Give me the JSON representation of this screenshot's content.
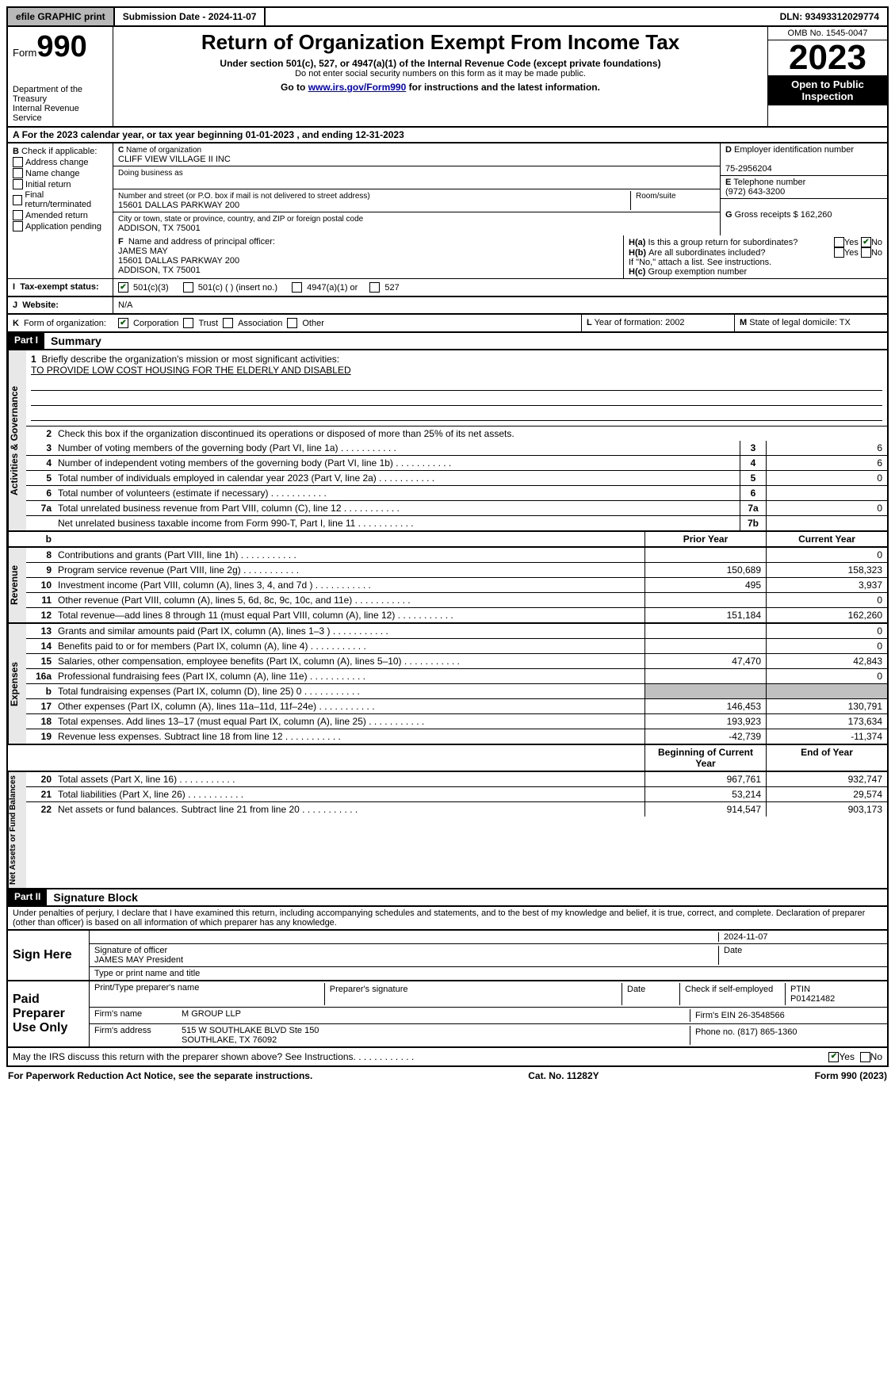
{
  "topbar": {
    "efile": "efile GRAPHIC print",
    "submission_label": "Submission Date - 2024-11-07",
    "dln": "DLN: 93493312029774"
  },
  "header": {
    "form_prefix": "Form",
    "form_num": "990",
    "dept": "Department of the Treasury\nInternal Revenue Service",
    "title": "Return of Organization Exempt From Income Tax",
    "sub1": "Under section 501(c), 527, or 4947(a)(1) of the Internal Revenue Code (except private foundations)",
    "sub2": "Do not enter social security numbers on this form as it may be made public.",
    "sub3_pre": "Go to ",
    "sub3_link": "www.irs.gov/Form990",
    "sub3_post": " for instructions and the latest information.",
    "omb": "OMB No. 1545-0047",
    "year": "2023",
    "open": "Open to Public Inspection"
  },
  "line_a": "For the 2023 calendar year, or tax year beginning 01-01-2023   , and ending 12-31-2023",
  "box_b": {
    "label": "Check if applicable:",
    "items": [
      "Address change",
      "Name change",
      "Initial return",
      "Final return/terminated",
      "Amended return",
      "Application pending"
    ],
    "prefix": "B"
  },
  "box_c": {
    "name_lbl": "Name of organization",
    "name": "CLIFF VIEW VILLAGE II INC",
    "dba_lbl": "Doing business as",
    "dba": "",
    "addr_lbl": "Number and street (or P.O. box if mail is not delivered to street address)",
    "addr": "15601 DALLAS PARKWAY 200",
    "room_lbl": "Room/suite",
    "city_lbl": "City or town, state or province, country, and ZIP or foreign postal code",
    "city": "ADDISON, TX  75001",
    "prefix": "C"
  },
  "box_d": {
    "lbl": "Employer identification number",
    "val": "75-2956204",
    "prefix": "D"
  },
  "box_e": {
    "lbl": "Telephone number",
    "val": "(972) 643-3200",
    "prefix": "E"
  },
  "box_g": {
    "lbl": "Gross receipts $",
    "val": "162,260",
    "prefix": "G"
  },
  "box_f": {
    "lbl": "Name and address of principal officer:",
    "val": "JAMES MAY\n15601 DALLAS PARKWAY 200\nADDISON, TX  75001",
    "prefix": "F"
  },
  "box_h": {
    "a": "Is this a group return for subordinates?",
    "b": "Are all subordinates included?",
    "note": "If \"No,\" attach a list. See instructions.",
    "c": "Group exemption number",
    "yes": "Yes",
    "no": "No",
    "ha": "H(a)",
    "hb": "H(b)",
    "hc": "H(c)"
  },
  "box_i": {
    "lbl": "Tax-exempt status:",
    "o1": "501(c)(3)",
    "o2": "501(c) (  ) (insert no.)",
    "o3": "4947(a)(1) or",
    "o4": "527",
    "prefix": "I"
  },
  "box_j": {
    "lbl": "Website:",
    "val": "N/A",
    "prefix": "J"
  },
  "box_k": {
    "lbl": "Form of organization:",
    "o1": "Corporation",
    "o2": "Trust",
    "o3": "Association",
    "o4": "Other",
    "prefix": "K"
  },
  "box_l": {
    "lbl": "Year of formation:",
    "val": "2002",
    "prefix": "L"
  },
  "box_m": {
    "lbl": "State of legal domicile:",
    "val": "TX",
    "prefix": "M"
  },
  "part1": {
    "hdr": "Part I",
    "title": "Summary",
    "q1": "Briefly describe the organization's mission or most significant activities:",
    "mission": "TO PROVIDE LOW COST HOUSING FOR THE ELDERLY AND DISABLED",
    "q2": "Check this box      if the organization discontinued its operations or disposed of more than 25% of its net assets.",
    "tabs": {
      "gov": "Activities & Governance",
      "rev": "Revenue",
      "exp": "Expenses",
      "net": "Net Assets or Fund Balances"
    },
    "lines": [
      {
        "n": "3",
        "d": "Number of voting members of the governing body (Part VI, line 1a)",
        "box": "3",
        "v2": "6"
      },
      {
        "n": "4",
        "d": "Number of independent voting members of the governing body (Part VI, line 1b)",
        "box": "4",
        "v2": "6"
      },
      {
        "n": "5",
        "d": "Total number of individuals employed in calendar year 2023 (Part V, line 2a)",
        "box": "5",
        "v2": "0"
      },
      {
        "n": "6",
        "d": "Total number of volunteers (estimate if necessary)",
        "box": "6",
        "v2": ""
      },
      {
        "n": "7a",
        "d": "Total unrelated business revenue from Part VIII, column (C), line 12",
        "box": "7a",
        "v2": "0"
      },
      {
        "n": "",
        "d": "Net unrelated business taxable income from Form 990-T, Part I, line 11",
        "box": "7b",
        "v2": ""
      }
    ],
    "cols": {
      "prior": "Prior Year",
      "curr": "Current Year",
      "begin": "Beginning of Current Year",
      "end": "End of Year"
    },
    "rev": [
      {
        "n": "8",
        "d": "Contributions and grants (Part VIII, line 1h)",
        "v1": "",
        "v2": "0"
      },
      {
        "n": "9",
        "d": "Program service revenue (Part VIII, line 2g)",
        "v1": "150,689",
        "v2": "158,323"
      },
      {
        "n": "10",
        "d": "Investment income (Part VIII, column (A), lines 3, 4, and 7d )",
        "v1": "495",
        "v2": "3,937"
      },
      {
        "n": "11",
        "d": "Other revenue (Part VIII, column (A), lines 5, 6d, 8c, 9c, 10c, and 11e)",
        "v1": "",
        "v2": "0"
      },
      {
        "n": "12",
        "d": "Total revenue—add lines 8 through 11 (must equal Part VIII, column (A), line 12)",
        "v1": "151,184",
        "v2": "162,260"
      }
    ],
    "exp": [
      {
        "n": "13",
        "d": "Grants and similar amounts paid (Part IX, column (A), lines 1–3 )",
        "v1": "",
        "v2": "0"
      },
      {
        "n": "14",
        "d": "Benefits paid to or for members (Part IX, column (A), line 4)",
        "v1": "",
        "v2": "0"
      },
      {
        "n": "15",
        "d": "Salaries, other compensation, employee benefits (Part IX, column (A), lines 5–10)",
        "v1": "47,470",
        "v2": "42,843"
      },
      {
        "n": "16a",
        "d": "Professional fundraising fees (Part IX, column (A), line 11e)",
        "v1": "",
        "v2": "0"
      },
      {
        "n": "b",
        "d": "Total fundraising expenses (Part IX, column (D), line 25) 0",
        "v1": "grey",
        "v2": "grey"
      },
      {
        "n": "17",
        "d": "Other expenses (Part IX, column (A), lines 11a–11d, 11f–24e)",
        "v1": "146,453",
        "v2": "130,791"
      },
      {
        "n": "18",
        "d": "Total expenses. Add lines 13–17 (must equal Part IX, column (A), line 25)",
        "v1": "193,923",
        "v2": "173,634"
      },
      {
        "n": "19",
        "d": "Revenue less expenses. Subtract line 18 from line 12",
        "v1": "-42,739",
        "v2": "-11,374"
      }
    ],
    "net": [
      {
        "n": "20",
        "d": "Total assets (Part X, line 16)",
        "v1": "967,761",
        "v2": "932,747"
      },
      {
        "n": "21",
        "d": "Total liabilities (Part X, line 26)",
        "v1": "53,214",
        "v2": "29,574"
      },
      {
        "n": "22",
        "d": "Net assets or fund balances. Subtract line 21 from line 20",
        "v1": "914,547",
        "v2": "903,173"
      }
    ]
  },
  "part2": {
    "hdr": "Part II",
    "title": "Signature Block",
    "decl": "Under penalties of perjury, I declare that I have examined this return, including accompanying schedules and statements, and to the best of my knowledge and belief, it is true, correct, and complete. Declaration of preparer (other than officer) is based on all information of which preparer has any knowledge.",
    "sign_here": "Sign Here",
    "sig_officer": "Signature of officer",
    "officer": "JAMES MAY President",
    "type_name": "Type or print name and title",
    "date_lbl": "Date",
    "date": "2024-11-07",
    "paid": "Paid Preparer Use Only",
    "prep_name_lbl": "Print/Type preparer's name",
    "prep_sig_lbl": "Preparer's signature",
    "check_self": "Check       if self-employed",
    "ptin_lbl": "PTIN",
    "ptin": "P01421482",
    "firm_name_lbl": "Firm's name",
    "firm_name": "M GROUP LLP",
    "firm_ein_lbl": "Firm's EIN",
    "firm_ein": "26-3548566",
    "firm_addr_lbl": "Firm's address",
    "firm_addr": "515 W SOUTHLAKE BLVD Ste 150\nSOUTHLAKE, TX  76092",
    "phone_lbl": "Phone no.",
    "phone": "(817) 865-1360",
    "discuss": "May the IRS discuss this return with the preparer shown above? See Instructions.",
    "yes": "Yes",
    "no": "No"
  },
  "footer": {
    "pra": "For Paperwork Reduction Act Notice, see the separate instructions.",
    "cat": "Cat. No. 11282Y",
    "form": "Form 990 (2023)"
  }
}
